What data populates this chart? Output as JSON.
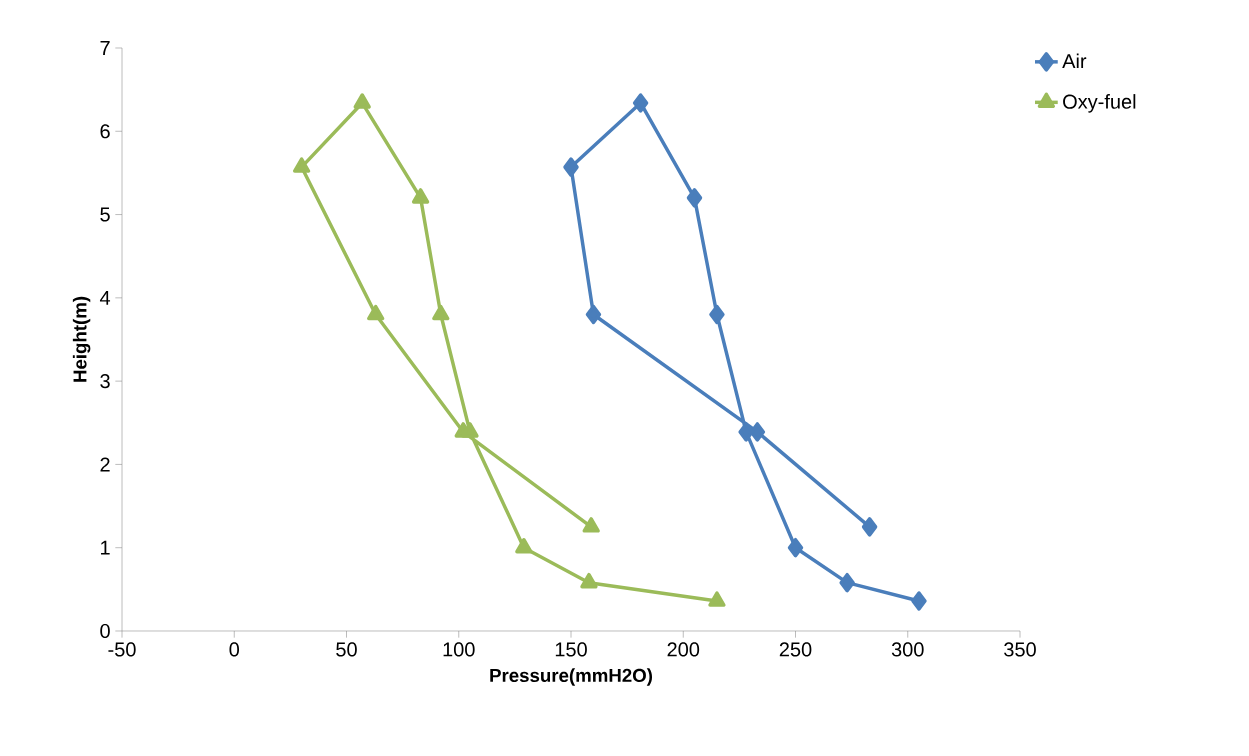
{
  "chart_data": {
    "type": "line",
    "xlabel": "Pressure(mmH2O)",
    "ylabel": "Height(m)",
    "xlim": [
      -50,
      350
    ],
    "xticks": [
      -50,
      0,
      50,
      100,
      150,
      200,
      250,
      300,
      350
    ],
    "ylim": [
      0,
      7
    ],
    "yticks": [
      0,
      1,
      2,
      3,
      4,
      5,
      6,
      7
    ],
    "grid": false,
    "legend": "top right",
    "series": [
      {
        "name": "Air",
        "color": "#4a7ebb",
        "marker": "diamond",
        "x": [
          283,
          233,
          160,
          150,
          181,
          205,
          215,
          228,
          250,
          273,
          305
        ],
        "values": [
          1.25,
          2.39,
          3.8,
          5.57,
          6.34,
          5.2,
          3.8,
          2.39,
          1.0,
          0.58,
          0.36
        ]
      },
      {
        "name": "Oxy-fuel",
        "color": "#9bbb59",
        "marker": "triangle",
        "x": [
          159,
          102,
          63,
          30,
          57,
          83,
          92,
          105,
          129,
          158,
          215
        ],
        "values": [
          1.25,
          2.39,
          3.8,
          5.57,
          6.34,
          5.2,
          3.8,
          2.39,
          1.0,
          0.58,
          0.36
        ]
      }
    ]
  }
}
